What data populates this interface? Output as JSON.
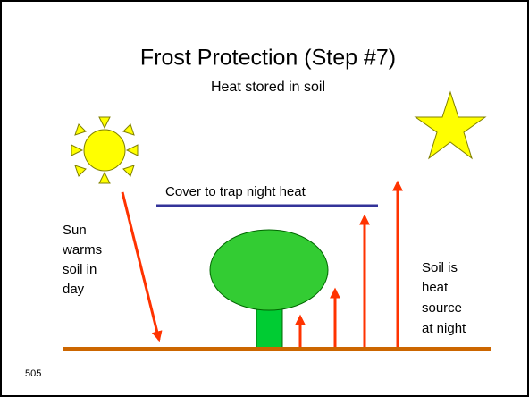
{
  "title": "Frost Protection (Step #7)",
  "subtitle": "Heat stored in soil",
  "cover_label": "Cover to trap night heat",
  "left_label": [
    "Sun",
    "warms",
    "soil in",
    "day"
  ],
  "right_label": [
    "Soil is",
    "heat",
    "source",
    "at night"
  ],
  "slide_number": "505"
}
